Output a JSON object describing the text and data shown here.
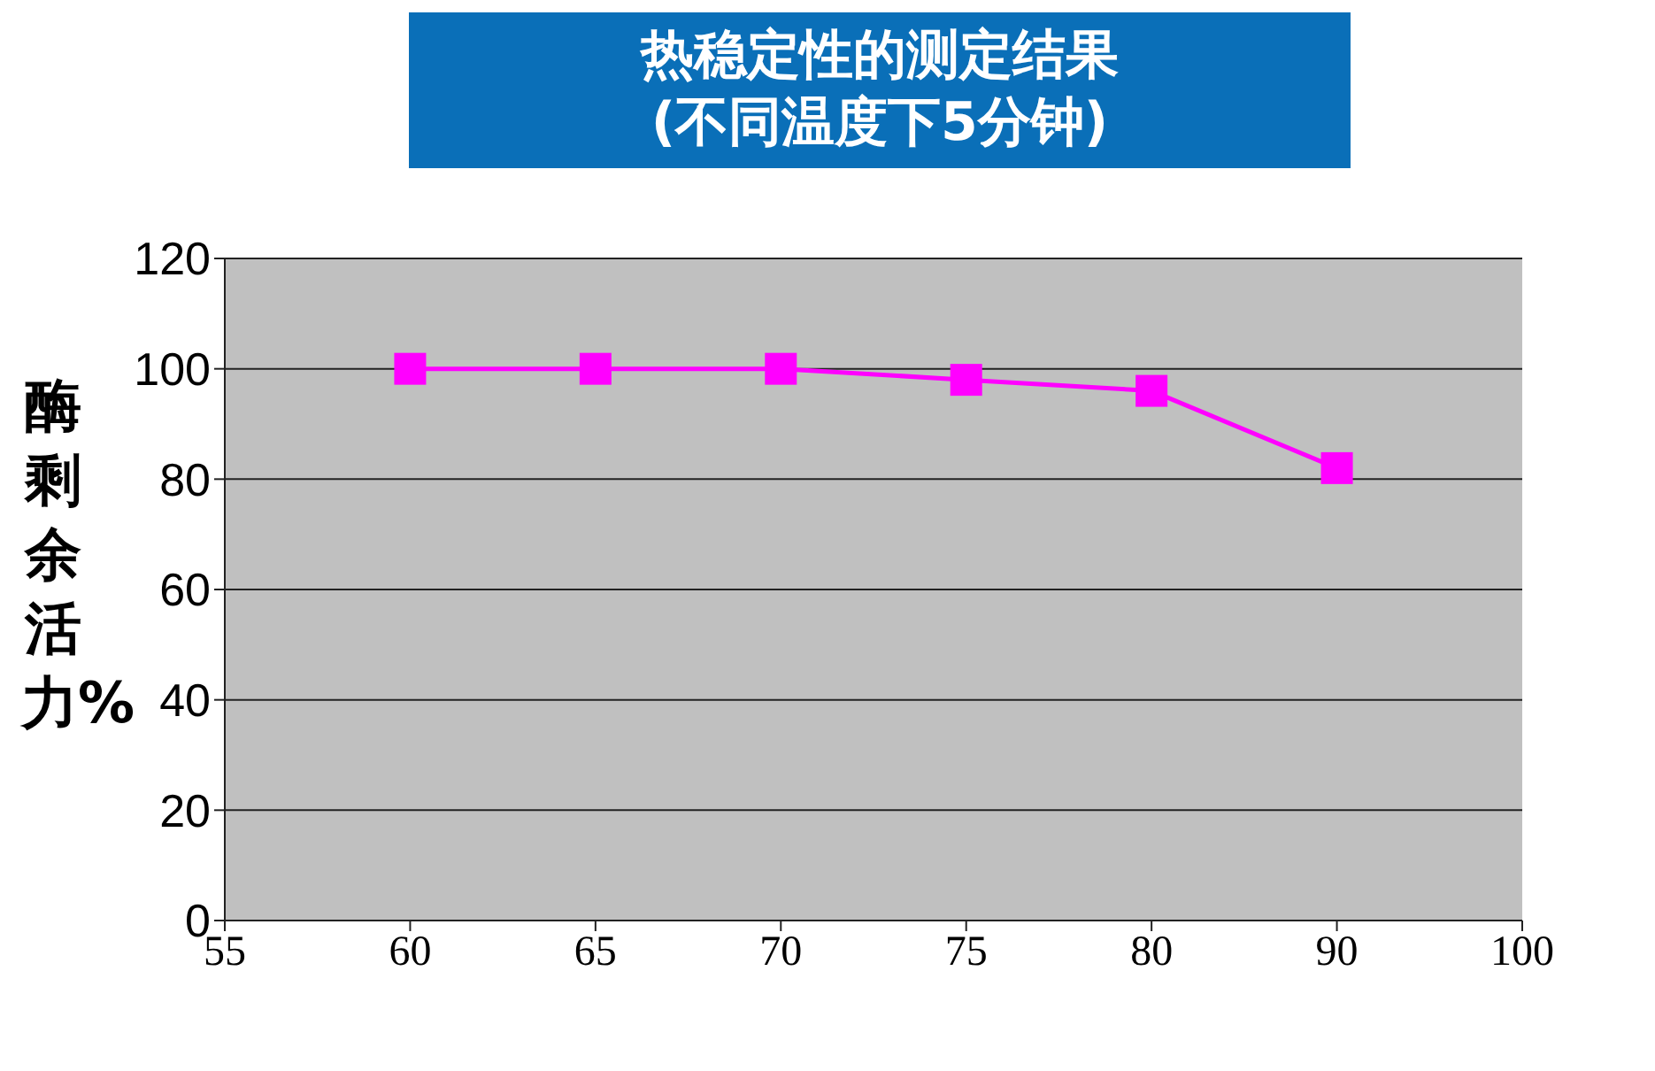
{
  "chart_data": {
    "type": "line",
    "title": "热稳定性的测定结果",
    "subtitle": "(不同温度下5分钟)",
    "ylabel": "酶剩余活力%",
    "categories": [
      "55",
      "60",
      "65",
      "70",
      "75",
      "80",
      "90",
      "100"
    ],
    "series": [
      {
        "color": "#ff00ff",
        "values": [
          null,
          100,
          100,
          100,
          98,
          96,
          82,
          null
        ]
      }
    ],
    "ylim": [
      0,
      120
    ],
    "yticks": [
      0,
      20,
      40,
      60,
      80,
      100,
      120
    ],
    "grid": "y",
    "marker": "square",
    "line_style": "solid",
    "legend": false
  }
}
